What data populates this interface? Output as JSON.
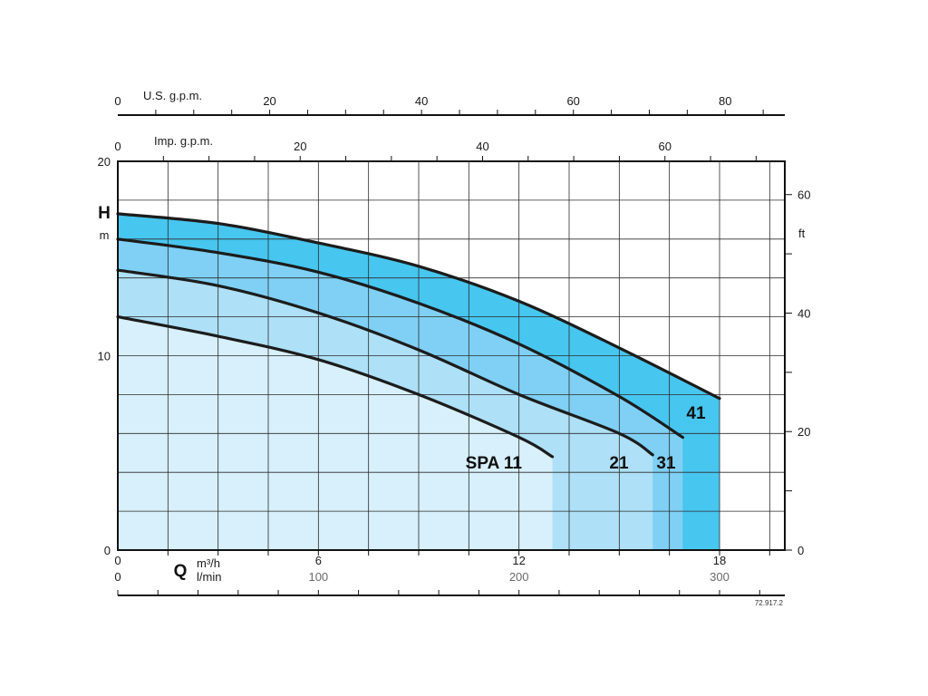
{
  "chart_data": {
    "type": "line",
    "title": "",
    "xlabel": "Q",
    "x_unit_primary": "m³/h",
    "x_unit_secondary": "l/min",
    "ylabel": "H",
    "y_unit": "m",
    "y2_unit": "ft",
    "xlim": [
      0,
      20
    ],
    "ylim": [
      0,
      20
    ],
    "x_ticks_m3h": [
      "0",
      "6",
      "12",
      "18"
    ],
    "x_ticks_lmin": [
      "0",
      "100",
      "200",
      "300"
    ],
    "y_ticks_m": [
      "0",
      "10",
      "20"
    ],
    "y_ticks_ft": [
      "0",
      "20",
      "40",
      "60"
    ],
    "top_axis_us_gpm": {
      "label": "U.S. g.p.m.",
      "ticks": [
        "0",
        "20",
        "40",
        "60",
        "80"
      ]
    },
    "top_axis_imp_gpm": {
      "label": "Imp. g.p.m.",
      "ticks": [
        "0",
        "20",
        "40",
        "60"
      ]
    },
    "grid": true,
    "series": [
      {
        "name": "SPA 11",
        "color": "#d7f0fb",
        "x": [
          0,
          3,
          6,
          9,
          12,
          13
        ],
        "y": [
          12.0,
          11.0,
          9.8,
          8.0,
          5.8,
          4.8
        ]
      },
      {
        "name": "21",
        "color": "#aee0f7",
        "x": [
          0,
          3,
          6,
          9,
          12,
          15,
          16
        ],
        "y": [
          14.4,
          13.6,
          12.2,
          10.3,
          8.0,
          6.0,
          4.9
        ]
      },
      {
        "name": "31",
        "color": "#7fd0f4",
        "x": [
          0,
          3,
          6,
          9,
          12,
          15,
          16.9
        ],
        "y": [
          16.0,
          15.3,
          14.3,
          12.7,
          10.6,
          7.9,
          5.8
        ]
      },
      {
        "name": "41",
        "color": "#47c6ef",
        "x": [
          0,
          3,
          6,
          9,
          12,
          15,
          18
        ],
        "y": [
          17.3,
          16.8,
          15.8,
          14.6,
          12.8,
          10.4,
          7.8
        ]
      }
    ],
    "code": "72.917.2"
  }
}
